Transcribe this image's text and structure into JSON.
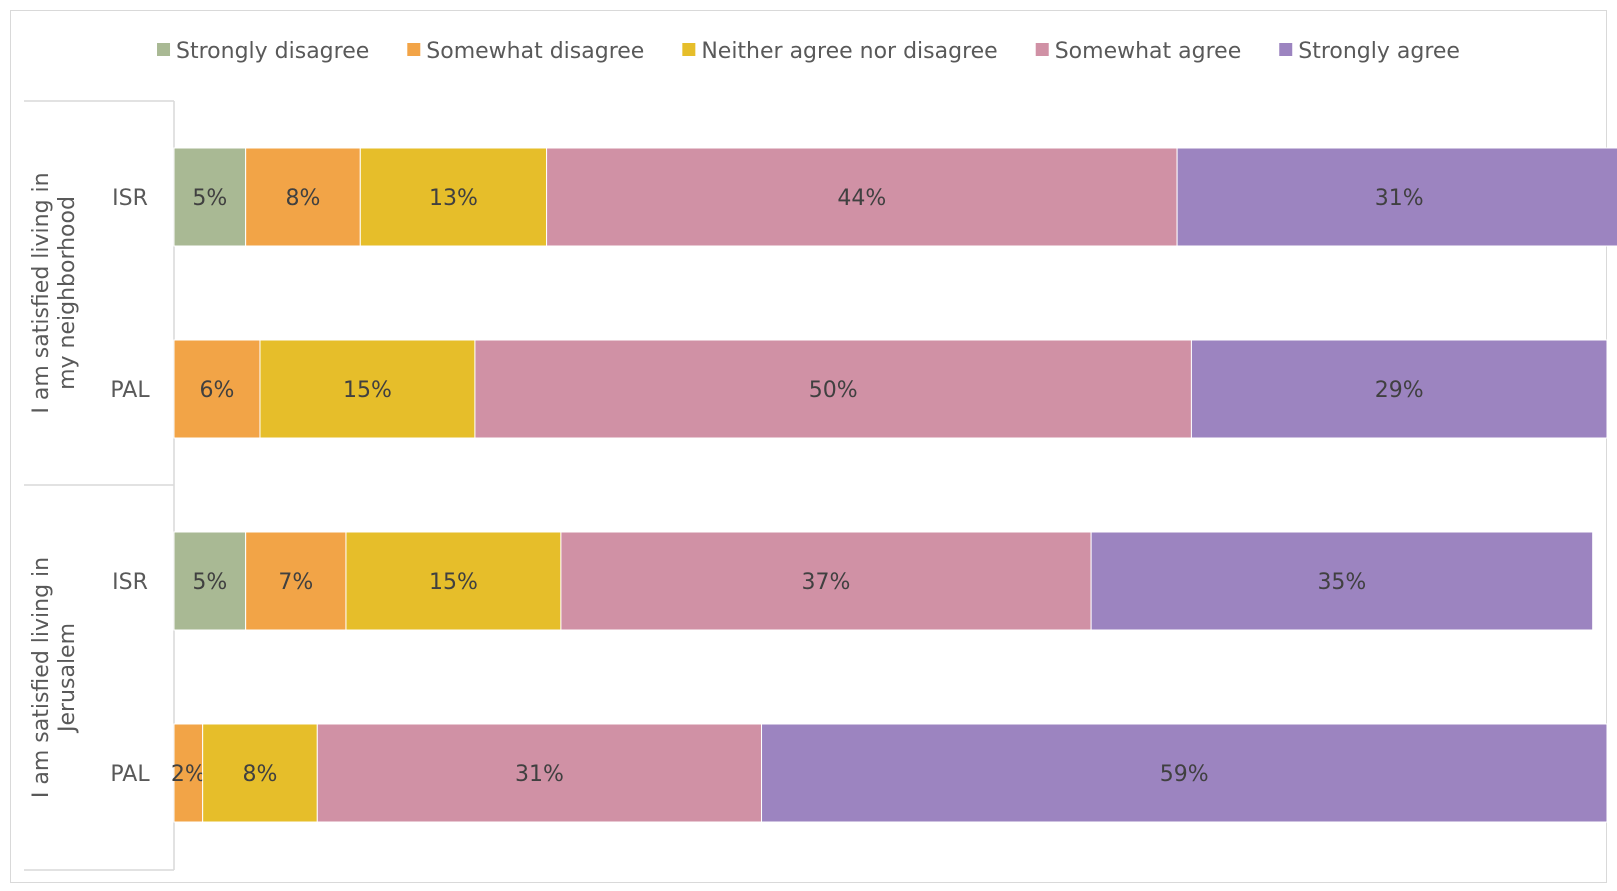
{
  "chart_data": {
    "type": "bar",
    "orientation": "horizontal",
    "stacking": "percent",
    "legend_position": "top",
    "grid": false,
    "xlim": [
      0,
      100
    ],
    "series": [
      {
        "name": "Strongly disagree",
        "color": "#a9b994"
      },
      {
        "name": "Somewhat disagree",
        "color": "#f2a447"
      },
      {
        "name": "Neither agree nor disagree",
        "color": "#e6be2a"
      },
      {
        "name": "Somewhat agree",
        "color": "#d091a5"
      },
      {
        "name": "Strongly agree",
        "color": "#9c84c0"
      }
    ],
    "groups": [
      {
        "label": "I am satisfied living in my neighborhood",
        "rows": [
          {
            "category": "ISR",
            "values": [
              5,
              8,
              13,
              44,
              31
            ],
            "labels": [
              "5%",
              "8%",
              "13%",
              "44%",
              "31%"
            ]
          },
          {
            "category": "PAL",
            "values": [
              0,
              6,
              15,
              50,
              29
            ],
            "labels": [
              "",
              "6%",
              "15%",
              "50%",
              "29%"
            ]
          }
        ]
      },
      {
        "label": "I am satisfied living in Jerusalem",
        "rows": [
          {
            "category": "ISR",
            "values": [
              5,
              7,
              15,
              37,
              35
            ],
            "labels": [
              "5%",
              "7%",
              "15%",
              "37%",
              "35%"
            ]
          },
          {
            "category": "PAL",
            "values": [
              0,
              2,
              8,
              31,
              59
            ],
            "labels": [
              "",
              "2%",
              "8%",
              "31%",
              "59%"
            ]
          }
        ]
      }
    ]
  }
}
